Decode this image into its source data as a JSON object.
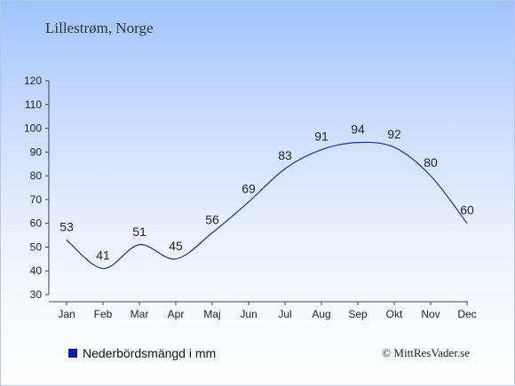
{
  "title": "Lillestrøm, Norge",
  "legend": "Nederbördsmängd i mm",
  "copyright": "© MittResVader.se",
  "colors": {
    "line": "#1a2fa0",
    "legend_swatch": "#0a1ea8",
    "axis": "#444444"
  },
  "chart_data": {
    "type": "line",
    "categories": [
      "Jan",
      "Feb",
      "Mar",
      "Apr",
      "Maj",
      "Jun",
      "Jul",
      "Aug",
      "Sep",
      "Okt",
      "Nov",
      "Dec"
    ],
    "series": [
      {
        "name": "Nederbördsmängd i mm",
        "values": [
          53,
          41,
          51,
          45,
          56,
          69,
          83,
          91,
          94,
          92,
          80,
          60
        ]
      }
    ],
    "ylim": [
      30,
      120
    ],
    "yticks": [
      30,
      40,
      50,
      60,
      70,
      80,
      90,
      100,
      110,
      120
    ],
    "grid": false,
    "legend_position": "bottom-left"
  }
}
